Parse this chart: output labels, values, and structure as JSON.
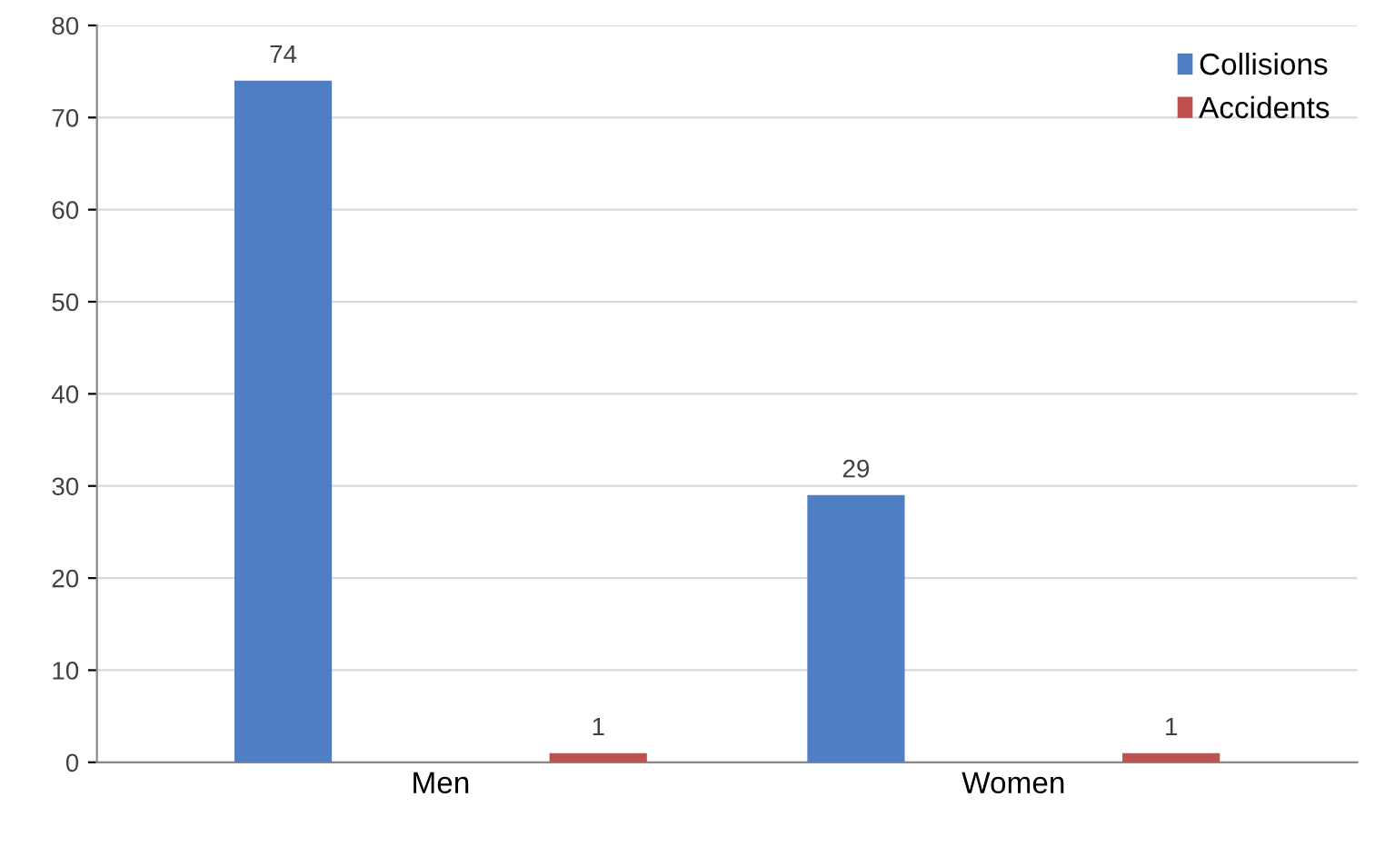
{
  "chart_data": {
    "type": "bar",
    "categories": [
      "Men",
      "Women"
    ],
    "series": [
      {
        "name": "Collisions",
        "color": "#4f7ec5",
        "values": [
          74,
          29
        ]
      },
      {
        "name": "Accidents",
        "color": "#c0504d",
        "values": [
          1,
          1
        ]
      }
    ],
    "ylim": [
      0,
      80
    ],
    "yticks": [
      0,
      10,
      20,
      30,
      40,
      50,
      60,
      70,
      80
    ],
    "grid": "y",
    "legend": "top right",
    "data_labels": true
  }
}
